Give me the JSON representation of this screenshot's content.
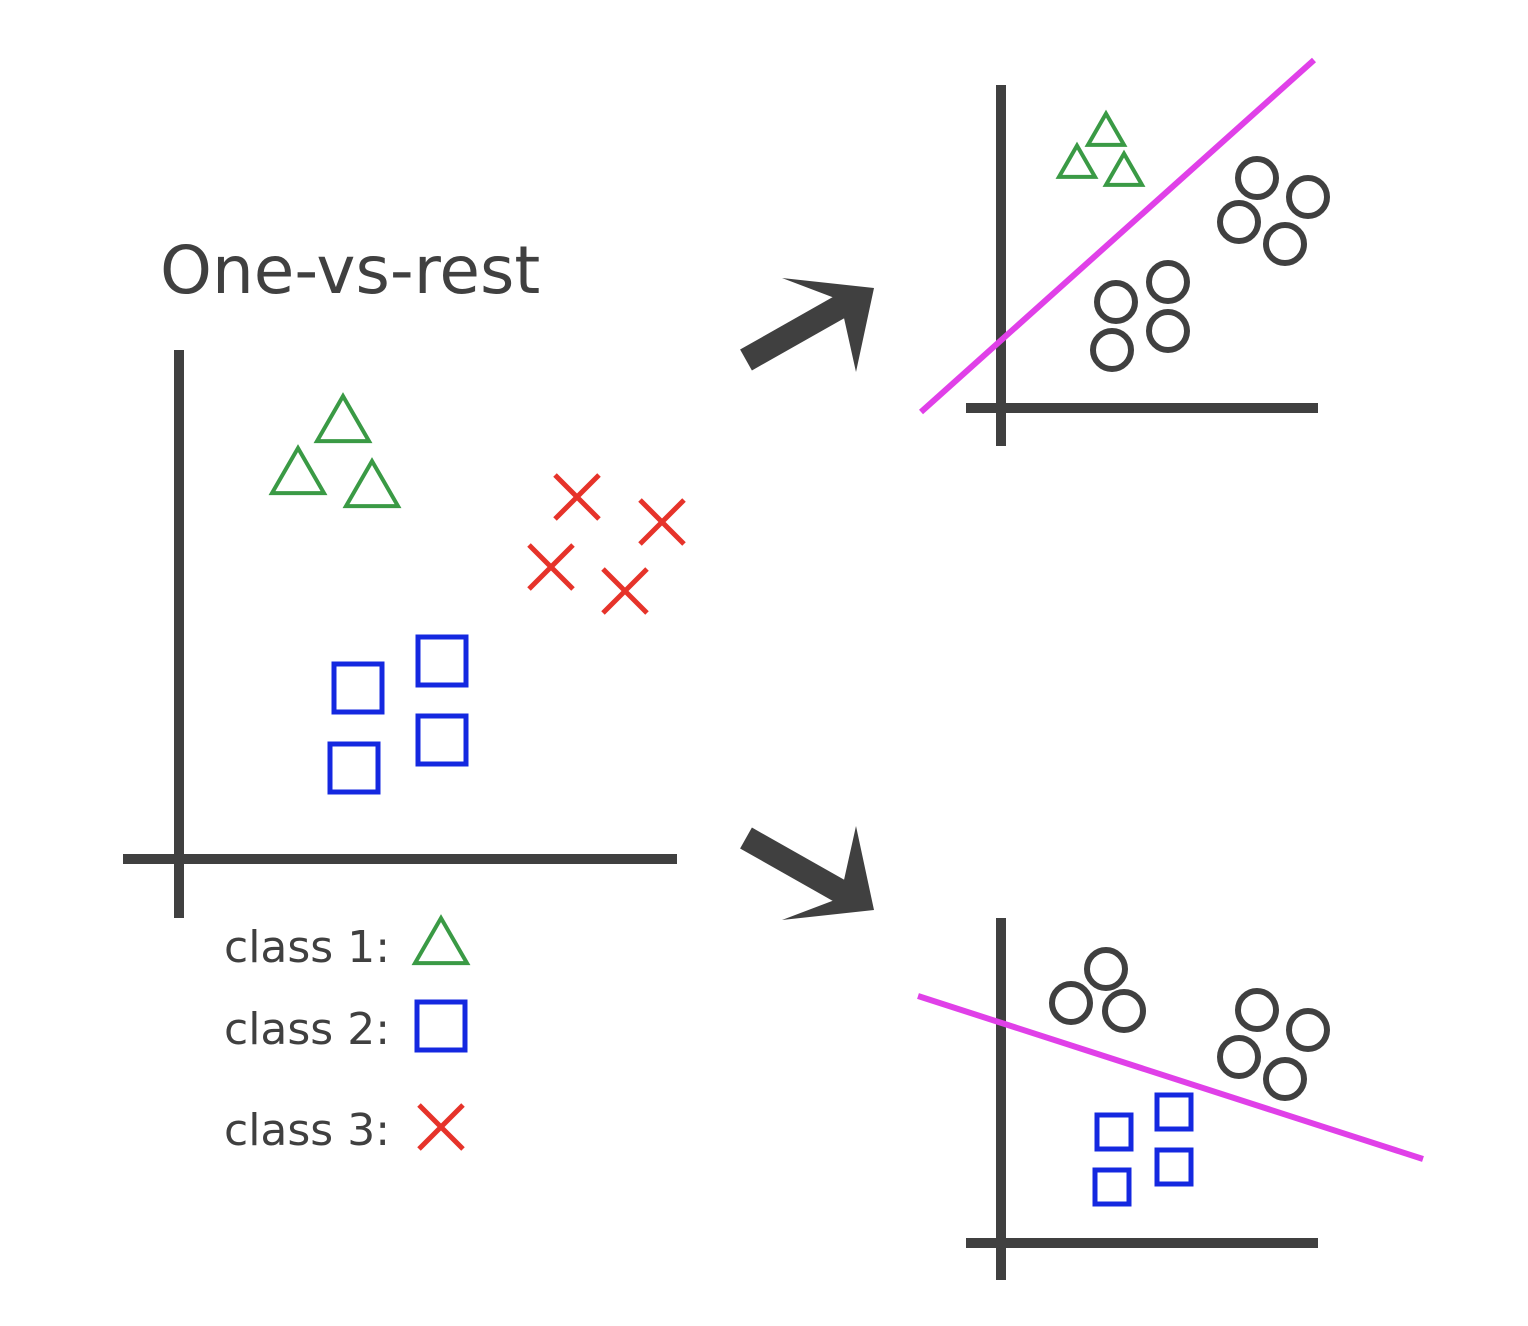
{
  "title": "One-vs-rest",
  "colors": {
    "axis": "#404040",
    "class1": "#3a9a45",
    "class2": "#1428e0",
    "class3": "#e6332a",
    "rest": "#404040",
    "boundary": "#e040e8"
  },
  "legend": [
    {
      "label": "class 1:",
      "symbol": "triangle-icon"
    },
    {
      "label": "class 2:",
      "symbol": "square-icon"
    },
    {
      "label": "class 3:",
      "symbol": "cross-icon"
    }
  ],
  "panels": [
    {
      "name": "source-plot",
      "classes": [
        "class 1",
        "class 2",
        "class 3"
      ]
    },
    {
      "name": "class1-vs-rest-plot",
      "positive": "class 1",
      "negative": "rest",
      "separator": "boundary"
    },
    {
      "name": "class2-vs-rest-plot",
      "positive": "class 2",
      "negative": "rest",
      "separator": "boundary"
    }
  ]
}
